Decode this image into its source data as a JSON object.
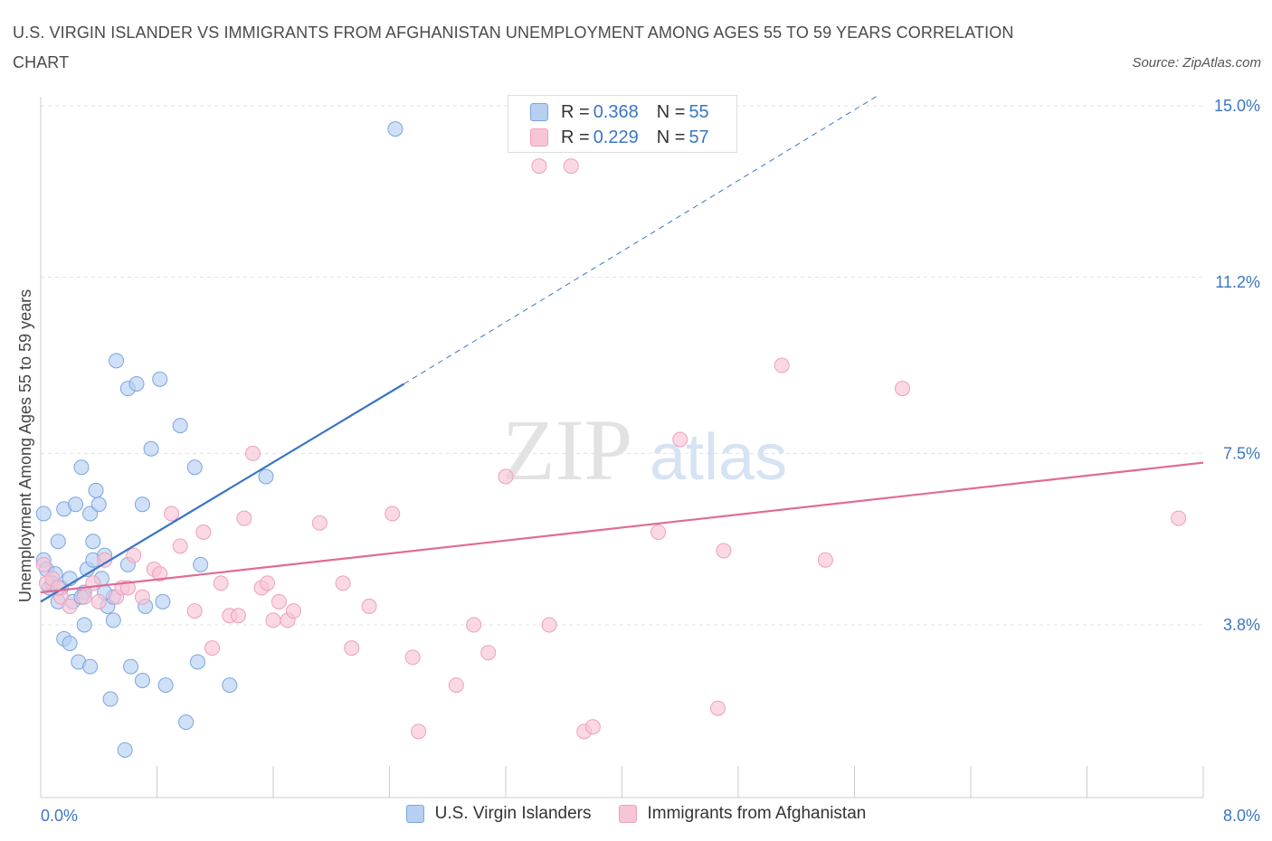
{
  "title": "U.S. VIRGIN ISLANDER VS IMMIGRANTS FROM AFGHANISTAN UNEMPLOYMENT AMONG AGES 55 TO 59 YEARS CORRELATION CHART",
  "source": "Source: ZipAtlas.com",
  "watermark": {
    "zip": "ZIP",
    "atlas": "atlas"
  },
  "legend_top": [
    {
      "r_label": "R =",
      "r_value": "0.368",
      "n_label": "N =",
      "n_value": "55"
    },
    {
      "r_label": "R =",
      "r_value": "0.229",
      "n_label": "N =",
      "n_value": "57"
    }
  ],
  "colors": {
    "blue_fill": "#b7d0f2",
    "blue_stroke": "#7aa6e0",
    "blue_line": "#3a76c4",
    "pink_fill": "#f8c5d6",
    "pink_stroke": "#eea0bb",
    "pink_line": "#e06b95",
    "grid": "#e2e2e2",
    "tick_label": "#3a76c4"
  },
  "chart_data": {
    "type": "scatter",
    "title": "U.S. VIRGIN ISLANDER VS IMMIGRANTS FROM AFGHANISTAN UNEMPLOYMENT AMONG AGES 55 TO 59 YEARS CORRELATION CHART",
    "xlabel": "",
    "ylabel": "Unemployment Among Ages 55 to 59 years",
    "xlim": [
      0,
      8.0
    ],
    "ylim": [
      0,
      15.2
    ],
    "x_tick_labels": [
      {
        "value": 0,
        "label": "0.0%"
      },
      {
        "value": 8.0,
        "label": "8.0%"
      }
    ],
    "y_tick_labels": [
      {
        "value": 3.8,
        "label": "3.8%"
      },
      {
        "value": 7.5,
        "label": "7.5%"
      },
      {
        "value": 11.2,
        "label": "11.2%"
      },
      {
        "value": 15.0,
        "label": "15.0%"
      }
    ],
    "y_gridlines": [
      3.8,
      7.5,
      11.3,
      15.0
    ],
    "x_minor_ticks": [
      0.8,
      1.6,
      2.4,
      3.2,
      4.0,
      4.8,
      5.6,
      6.4,
      7.2,
      8.0
    ],
    "legend_position": "top-center",
    "series": [
      {
        "name": "U.S. Virgin Islanders",
        "color": "#b7d0f2",
        "trend": {
          "x": [
            0.0,
            2.5
          ],
          "y": [
            4.3,
            9.0
          ],
          "dashed_extension": {
            "x": [
              2.5,
              5.75
            ],
            "y": [
              9.0,
              15.2
            ]
          }
        },
        "points": [
          [
            0.02,
            6.2
          ],
          [
            0.02,
            5.2
          ],
          [
            0.04,
            5.0
          ],
          [
            0.06,
            4.6
          ],
          [
            0.1,
            4.9
          ],
          [
            0.12,
            5.6
          ],
          [
            0.16,
            6.3
          ],
          [
            0.12,
            4.3
          ],
          [
            0.16,
            3.5
          ],
          [
            0.2,
            3.4
          ],
          [
            0.22,
            4.3
          ],
          [
            0.24,
            6.4
          ],
          [
            0.26,
            3.0
          ],
          [
            0.28,
            7.2
          ],
          [
            0.3,
            4.5
          ],
          [
            0.3,
            3.8
          ],
          [
            0.32,
            5.0
          ],
          [
            0.34,
            2.9
          ],
          [
            0.34,
            6.2
          ],
          [
            0.36,
            5.6
          ],
          [
            0.36,
            5.2
          ],
          [
            0.38,
            6.7
          ],
          [
            0.4,
            6.4
          ],
          [
            0.42,
            4.8
          ],
          [
            0.44,
            5.3
          ],
          [
            0.46,
            4.2
          ],
          [
            0.48,
            2.2
          ],
          [
            0.5,
            3.9
          ],
          [
            0.5,
            4.4
          ],
          [
            0.52,
            9.5
          ],
          [
            0.58,
            1.1
          ],
          [
            0.6,
            5.1
          ],
          [
            0.6,
            8.9
          ],
          [
            0.62,
            2.9
          ],
          [
            0.66,
            9.0
          ],
          [
            0.7,
            2.6
          ],
          [
            0.7,
            6.4
          ],
          [
            0.72,
            4.2
          ],
          [
            0.76,
            7.6
          ],
          [
            0.82,
            9.1
          ],
          [
            0.84,
            4.3
          ],
          [
            0.86,
            2.5
          ],
          [
            0.96,
            8.1
          ],
          [
            1.0,
            1.7
          ],
          [
            1.06,
            7.2
          ],
          [
            1.08,
            3.0
          ],
          [
            1.1,
            5.1
          ],
          [
            1.3,
            2.5
          ],
          [
            1.55,
            7.0
          ],
          [
            2.44,
            14.5
          ],
          [
            0.08,
            4.7
          ],
          [
            0.14,
            4.6
          ],
          [
            0.2,
            4.8
          ],
          [
            0.28,
            4.4
          ],
          [
            0.44,
            4.5
          ]
        ]
      },
      {
        "name": "Immigrants from Afghanistan",
        "color": "#f8c5d6",
        "trend": {
          "x": [
            0.0,
            8.0
          ],
          "y": [
            4.5,
            7.3
          ]
        },
        "points": [
          [
            0.02,
            5.1
          ],
          [
            0.04,
            4.7
          ],
          [
            0.08,
            4.8
          ],
          [
            0.14,
            4.4
          ],
          [
            0.2,
            4.2
          ],
          [
            0.3,
            4.4
          ],
          [
            0.36,
            4.7
          ],
          [
            0.4,
            4.3
          ],
          [
            0.44,
            5.2
          ],
          [
            0.52,
            4.4
          ],
          [
            0.56,
            4.6
          ],
          [
            0.6,
            4.6
          ],
          [
            0.64,
            5.3
          ],
          [
            0.7,
            4.4
          ],
          [
            0.78,
            5.0
          ],
          [
            0.82,
            4.9
          ],
          [
            0.9,
            6.2
          ],
          [
            0.96,
            5.5
          ],
          [
            1.06,
            4.1
          ],
          [
            1.12,
            5.8
          ],
          [
            1.18,
            3.3
          ],
          [
            1.24,
            4.7
          ],
          [
            1.3,
            4.0
          ],
          [
            1.36,
            4.0
          ],
          [
            1.4,
            6.1
          ],
          [
            1.46,
            7.5
          ],
          [
            1.52,
            4.6
          ],
          [
            1.56,
            4.7
          ],
          [
            1.6,
            3.9
          ],
          [
            1.64,
            4.3
          ],
          [
            1.7,
            3.9
          ],
          [
            1.74,
            4.1
          ],
          [
            1.92,
            6.0
          ],
          [
            2.08,
            4.7
          ],
          [
            2.14,
            3.3
          ],
          [
            2.26,
            4.2
          ],
          [
            2.42,
            6.2
          ],
          [
            2.56,
            3.1
          ],
          [
            2.6,
            1.5
          ],
          [
            2.86,
            2.5
          ],
          [
            2.98,
            3.8
          ],
          [
            3.08,
            3.2
          ],
          [
            3.2,
            7.0
          ],
          [
            3.43,
            13.7
          ],
          [
            3.5,
            3.8
          ],
          [
            3.74,
            1.5
          ],
          [
            3.8,
            1.6
          ],
          [
            3.65,
            13.7
          ],
          [
            4.25,
            5.8
          ],
          [
            4.4,
            7.8
          ],
          [
            4.66,
            2.0
          ],
          [
            4.7,
            5.4
          ],
          [
            5.1,
            9.4
          ],
          [
            5.4,
            5.2
          ],
          [
            5.93,
            8.9
          ],
          [
            7.83,
            6.1
          ],
          [
            0.12,
            4.6
          ]
        ]
      }
    ]
  },
  "legend_bottom": [
    {
      "label": "U.S. Virgin Islanders"
    },
    {
      "label": "Immigrants from Afghanistan"
    }
  ]
}
